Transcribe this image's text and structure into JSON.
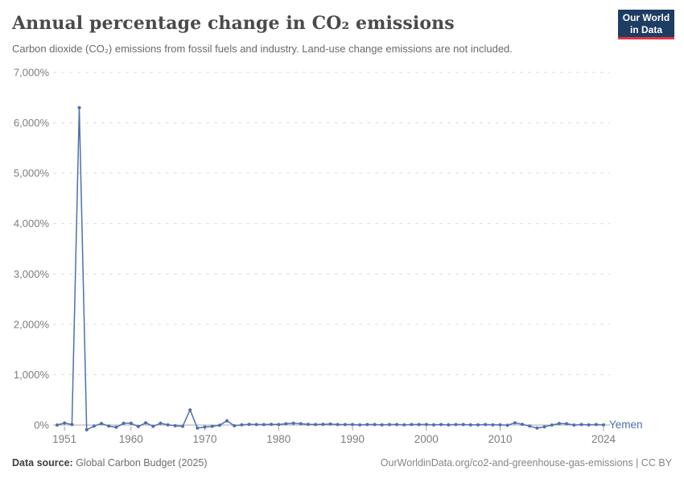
{
  "header": {
    "title": "Annual percentage change in CO₂ emissions",
    "subtitle": "Carbon dioxide (CO₂) emissions from fossil fuels and industry. Land-use change emissions are not included.",
    "logo": {
      "line1": "Our World",
      "line2": "in Data",
      "bg_color": "#1d3d63",
      "accent_color": "#e5353f"
    }
  },
  "chart_data": {
    "type": "line",
    "title": "Annual percentage change in CO₂ emissions",
    "xlabel": "",
    "ylabel": "",
    "grid": "horizontal-dashed",
    "legend_position": "end-of-line-label",
    "xlim": [
      1950,
      2024
    ],
    "ylim": [
      -100,
      7000
    ],
    "x_ticks": [
      1951,
      1960,
      1970,
      1980,
      1990,
      2000,
      2010,
      2024
    ],
    "y_ticks": [
      {
        "v": 0,
        "label": "0%"
      },
      {
        "v": 1000,
        "label": "1,000%"
      },
      {
        "v": 2000,
        "label": "2,000%"
      },
      {
        "v": 3000,
        "label": "3,000%"
      },
      {
        "v": 4000,
        "label": "4,000%"
      },
      {
        "v": 5000,
        "label": "5,000%"
      },
      {
        "v": 6000,
        "label": "6,000%"
      },
      {
        "v": 7000,
        "label": "7,000%"
      }
    ],
    "series": [
      {
        "name": "Yemen",
        "color": "#4d6fae",
        "x": [
          1950,
          1951,
          1952,
          1953,
          1954,
          1955,
          1956,
          1957,
          1958,
          1959,
          1960,
          1961,
          1962,
          1963,
          1964,
          1965,
          1966,
          1967,
          1968,
          1969,
          1970,
          1971,
          1972,
          1973,
          1974,
          1975,
          1976,
          1977,
          1978,
          1979,
          1980,
          1981,
          1982,
          1983,
          1984,
          1985,
          1986,
          1987,
          1988,
          1989,
          1990,
          1991,
          1992,
          1993,
          1994,
          1995,
          1996,
          1997,
          1998,
          1999,
          2000,
          2001,
          2002,
          2003,
          2004,
          2005,
          2006,
          2007,
          2008,
          2009,
          2010,
          2011,
          2012,
          2013,
          2014,
          2015,
          2016,
          2017,
          2018,
          2019,
          2020,
          2021,
          2022,
          2023,
          2024
        ],
        "values": [
          0,
          40,
          10,
          6300,
          -95,
          -20,
          30,
          -20,
          -45,
          35,
          35,
          -30,
          45,
          -25,
          35,
          5,
          -15,
          -25,
          300,
          -60,
          -40,
          -25,
          -5,
          85,
          -15,
          5,
          15,
          10,
          10,
          15,
          10,
          25,
          35,
          25,
          15,
          10,
          15,
          20,
          10,
          10,
          10,
          5,
          10,
          10,
          5,
          10,
          10,
          5,
          10,
          10,
          10,
          5,
          10,
          5,
          10,
          10,
          5,
          5,
          10,
          5,
          5,
          -5,
          45,
          15,
          -20,
          -60,
          -35,
          0,
          30,
          25,
          0,
          10,
          5,
          10,
          5
        ]
      }
    ]
  },
  "footer": {
    "source_label": "Data source:",
    "source_value": " Global Carbon Budget (2025)",
    "link": "OurWorldinData.org/co2-and-greenhouse-gas-emissions | CC BY"
  }
}
